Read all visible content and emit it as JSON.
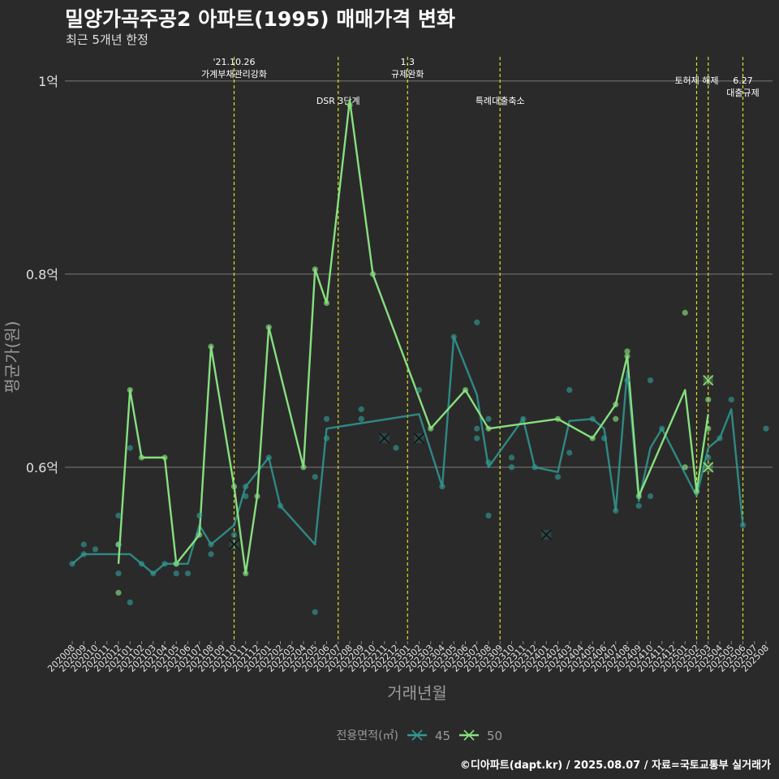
{
  "title": "밀양가곡주공2 아파트(1995) 매매가격 변화",
  "subtitle": "최근 5개년 한정",
  "caption": "©디아파트(dapt.kr) / 2025.08.07 / 자료=국토교통부 실거래가",
  "chart_data": {
    "type": "line",
    "xlabel": "거래년월",
    "ylabel": "평균가(원)",
    "x_ticks": [
      "202008",
      "202009",
      "202010",
      "202011",
      "202012",
      "202101",
      "202102",
      "202103",
      "202104",
      "202105",
      "202106",
      "202107",
      "202108",
      "202109",
      "202110",
      "202111",
      "202112",
      "202201",
      "202202",
      "202203",
      "202204",
      "202205",
      "202206",
      "202207",
      "202208",
      "202209",
      "202210",
      "202211",
      "202212",
      "202301",
      "202302",
      "202303",
      "202304",
      "202305",
      "202306",
      "202307",
      "202308",
      "202309",
      "202310",
      "202311",
      "202312",
      "202401",
      "202402",
      "202403",
      "202404",
      "202405",
      "202406",
      "202407",
      "202408",
      "202409",
      "202410",
      "202411",
      "202412",
      "202501",
      "202502",
      "202503",
      "202504",
      "202505",
      "202506",
      "202507",
      "202508"
    ],
    "y_ticks": [
      {
        "value": 0.6,
        "label": "0.6억"
      },
      {
        "value": 0.8,
        "label": "0.8억"
      },
      {
        "value": 1.0,
        "label": "1억"
      }
    ],
    "ylim": [
      0.42,
      1.025
    ],
    "unit": "억",
    "legend": {
      "title": "전용면적(㎡)",
      "position": "bottom"
    },
    "series": [
      {
        "name": "45",
        "color": "#2f9a92",
        "line": [
          [
            "202008",
            0.5
          ],
          [
            "202009",
            0.51
          ],
          [
            "202010",
            0.51
          ],
          [
            "202012",
            0.51
          ],
          [
            "202101",
            0.51
          ],
          [
            "202102",
            0.5
          ],
          [
            "202103",
            0.49
          ],
          [
            "202104",
            0.5
          ],
          [
            "202105",
            0.5
          ],
          [
            "202106",
            0.5
          ],
          [
            "202107",
            0.54
          ],
          [
            "202108",
            0.52
          ],
          [
            "202110",
            0.54
          ],
          [
            "202111",
            0.58
          ],
          [
            "202201",
            0.61
          ],
          [
            "202202",
            0.56
          ],
          [
            "202205",
            0.52
          ],
          [
            "202206",
            0.64
          ],
          [
            "202302",
            0.655
          ],
          [
            "202304",
            0.58
          ],
          [
            "202305",
            0.735
          ],
          [
            "202307",
            0.675
          ],
          [
            "202308",
            0.6
          ],
          [
            "202311",
            0.65
          ],
          [
            "202312",
            0.6
          ],
          [
            "202402",
            0.595
          ],
          [
            "202403",
            0.648
          ],
          [
            "202405",
            0.65
          ],
          [
            "202406",
            0.64
          ],
          [
            "202407",
            0.555
          ],
          [
            "202408",
            0.7
          ],
          [
            "202409",
            0.565
          ],
          [
            "202410",
            0.62
          ],
          [
            "202411",
            0.64
          ],
          [
            "202502",
            0.57
          ],
          [
            "202503",
            0.62
          ],
          [
            "202504",
            0.63
          ],
          [
            "202505",
            0.66
          ],
          [
            "202506",
            0.54
          ]
        ],
        "points": [
          [
            "202008",
            0.5
          ],
          [
            "202009",
            0.51
          ],
          [
            "202009",
            0.52
          ],
          [
            "202010",
            0.515
          ],
          [
            "202012",
            0.55
          ],
          [
            "202012",
            0.52
          ],
          [
            "202012",
            0.49
          ],
          [
            "202101",
            0.62
          ],
          [
            "202101",
            0.46
          ],
          [
            "202102",
            0.5
          ],
          [
            "202103",
            0.49
          ],
          [
            "202104",
            0.5
          ],
          [
            "202105",
            0.49
          ],
          [
            "202105",
            0.5
          ],
          [
            "202106",
            0.49
          ],
          [
            "202107",
            0.55
          ],
          [
            "202108",
            0.52
          ],
          [
            "202108",
            0.51
          ],
          [
            "202110",
            0.53
          ],
          [
            "202111",
            0.57
          ],
          [
            "202111",
            0.58
          ],
          [
            "202201",
            0.61
          ],
          [
            "202202",
            0.56
          ],
          [
            "202205",
            0.59
          ],
          [
            "202205",
            0.45
          ],
          [
            "202206",
            0.65
          ],
          [
            "202206",
            0.63
          ],
          [
            "202209",
            0.66
          ],
          [
            "202209",
            0.65
          ],
          [
            "202212",
            0.62
          ],
          [
            "202302",
            0.68
          ],
          [
            "202304",
            0.58
          ],
          [
            "202305",
            0.735
          ],
          [
            "202307",
            0.75
          ],
          [
            "202307",
            0.64
          ],
          [
            "202307",
            0.63
          ],
          [
            "202308",
            0.55
          ],
          [
            "202308",
            0.605
          ],
          [
            "202308",
            0.65
          ],
          [
            "202310",
            0.61
          ],
          [
            "202310",
            0.6
          ],
          [
            "202311",
            0.65
          ],
          [
            "202312",
            0.6
          ],
          [
            "202402",
            0.59
          ],
          [
            "202403",
            0.68
          ],
          [
            "202403",
            0.615
          ],
          [
            "202405",
            0.65
          ],
          [
            "202406",
            0.63
          ],
          [
            "202407",
            0.555
          ],
          [
            "202408",
            0.69
          ],
          [
            "202409",
            0.56
          ],
          [
            "202410",
            0.69
          ],
          [
            "202410",
            0.57
          ],
          [
            "202411",
            0.64
          ],
          [
            "202503",
            0.61
          ],
          [
            "202504",
            0.63
          ],
          [
            "202505",
            0.67
          ],
          [
            "202506",
            0.54
          ],
          [
            "202508",
            0.64
          ]
        ],
        "crosses": [
          [
            "202110",
            0.52
          ],
          [
            "202211",
            0.63
          ],
          [
            "202302",
            0.63
          ],
          [
            "202401",
            0.53
          ]
        ]
      },
      {
        "name": "50",
        "color": "#86e07e",
        "line": [
          [
            "202012",
            0.5
          ],
          [
            "202101",
            0.68
          ],
          [
            "202102",
            0.61
          ],
          [
            "202104",
            0.61
          ],
          [
            "202105",
            0.5
          ],
          [
            "202107",
            0.53
          ],
          [
            "202108",
            0.725
          ],
          [
            "202110",
            0.58
          ],
          [
            "202111",
            0.49
          ],
          [
            "202112",
            0.57
          ],
          [
            "202201",
            0.745
          ],
          [
            "202204",
            0.6
          ],
          [
            "202205",
            0.805
          ],
          [
            "202206",
            0.77
          ],
          [
            "202208",
            0.98
          ],
          [
            "202210",
            0.8
          ],
          [
            "202303",
            0.64
          ],
          [
            "202306",
            0.68
          ],
          [
            "202308",
            0.64
          ],
          [
            "202402",
            0.65
          ],
          [
            "202405",
            0.63
          ],
          [
            "202407",
            0.665
          ],
          [
            "202408",
            0.715
          ],
          [
            "202409",
            0.57
          ],
          [
            "202501",
            0.68
          ],
          [
            "202502",
            0.575
          ],
          [
            "202503",
            0.655
          ]
        ],
        "points": [
          [
            "202012",
            0.52
          ],
          [
            "202012",
            0.47
          ],
          [
            "202101",
            0.68
          ],
          [
            "202102",
            0.61
          ],
          [
            "202104",
            0.61
          ],
          [
            "202105",
            0.5
          ],
          [
            "202107",
            0.53
          ],
          [
            "202108",
            0.725
          ],
          [
            "202110",
            0.58
          ],
          [
            "202111",
            0.49
          ],
          [
            "202112",
            0.57
          ],
          [
            "202201",
            0.745
          ],
          [
            "202204",
            0.6
          ],
          [
            "202205",
            0.805
          ],
          [
            "202206",
            0.77
          ],
          [
            "202208",
            0.975
          ],
          [
            "202210",
            0.8
          ],
          [
            "202303",
            0.64
          ],
          [
            "202306",
            0.68
          ],
          [
            "202308",
            0.64
          ],
          [
            "202402",
            0.65
          ],
          [
            "202405",
            0.63
          ],
          [
            "202407",
            0.665
          ],
          [
            "202407",
            0.65
          ],
          [
            "202408",
            0.72
          ],
          [
            "202408",
            0.715
          ],
          [
            "202409",
            0.57
          ],
          [
            "202501",
            0.76
          ],
          [
            "202501",
            0.6
          ],
          [
            "202502",
            0.575
          ],
          [
            "202503",
            0.67
          ],
          [
            "202503",
            0.64
          ]
        ],
        "crosses": [
          [
            "202503",
            0.69
          ],
          [
            "202503",
            0.6
          ]
        ]
      }
    ],
    "annotations": [
      {
        "x": "202110",
        "lines": [
          "'21.10.26",
          "가계부채관리강화"
        ],
        "pos": "high"
      },
      {
        "x": "202207",
        "lines": [
          "DSR 3단계"
        ],
        "pos": "low"
      },
      {
        "x": "202301",
        "lines": [
          "1.3",
          "규제완화"
        ],
        "pos": "high"
      },
      {
        "x": "202309",
        "lines": [
          "특례대출축소"
        ],
        "pos": "low"
      },
      {
        "x": "202502",
        "lines": [
          "토허제 해제"
        ],
        "pos": "mid"
      },
      {
        "x": "202503",
        "lines": [],
        "pos": "none"
      },
      {
        "x": "202506",
        "lines": [
          "6.27",
          "대출규제"
        ],
        "pos": "lower"
      }
    ]
  }
}
